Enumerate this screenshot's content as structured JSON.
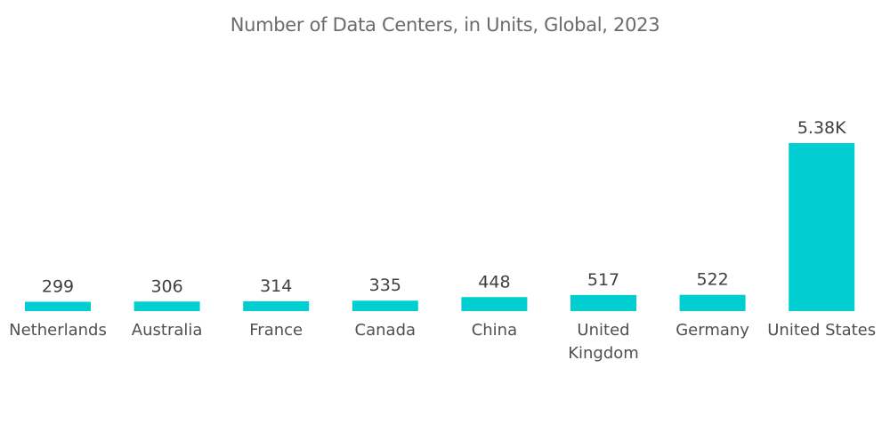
{
  "chart_data": {
    "type": "bar",
    "title": "Number of Data Centers, in Units, Global, 2023",
    "xlabel": "",
    "ylabel": "",
    "categories": [
      "Netherlands",
      "Australia",
      "France",
      "Canada",
      "China",
      "United Kingdom",
      "Germany",
      "United States"
    ],
    "category_lines": [
      [
        "Netherlands"
      ],
      [
        "Australia"
      ],
      [
        "France"
      ],
      [
        "Canada"
      ],
      [
        "China"
      ],
      [
        "United",
        "Kingdom"
      ],
      [
        "Germany"
      ],
      [
        "United States"
      ]
    ],
    "values": [
      299,
      306,
      314,
      335,
      448,
      517,
      522,
      5380
    ],
    "data_labels": [
      "299",
      "306",
      "314",
      "335",
      "448",
      "517",
      "522",
      "5.38K"
    ],
    "ylim": [
      0,
      5380
    ],
    "grid": false,
    "bar_color": "#00CED1"
  }
}
